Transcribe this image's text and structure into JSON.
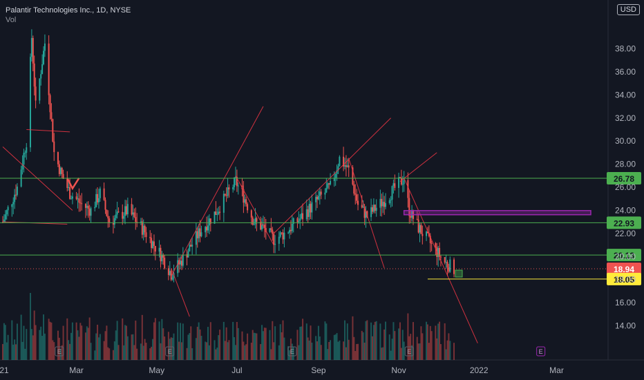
{
  "header": {
    "symbol": "Palantir Technologies Inc., 1D, NYSE",
    "indicator": "Vol"
  },
  "currency_button": "USD",
  "colors": {
    "background": "#131722",
    "up": "#26a69a",
    "down": "#ef5350",
    "green_level": "#4caf50",
    "yellow_level": "#ffeb3b",
    "purple_zone": "#9c27b0",
    "trendline": "#f23645"
  },
  "chart_data": {
    "type": "candlestick",
    "title": "Palantir Technologies Inc., 1D, NYSE",
    "ylim": [
      12.0,
      41.5
    ],
    "x_ticks": [
      "21",
      "Mar",
      "May",
      "Jul",
      "Sep",
      "Nov",
      "2022",
      "Mar"
    ],
    "y_ticks": [
      14.0,
      16.0,
      18.0,
      20.0,
      22.0,
      24.0,
      26.0,
      28.0,
      30.0,
      32.0,
      34.0,
      36.0,
      38.0
    ],
    "price_levels": [
      {
        "value": 26.78,
        "label": "26.78",
        "color": "green"
      },
      {
        "value": 22.93,
        "label": "22.93",
        "color": "green"
      },
      {
        "value": 20.13,
        "label": "20.13",
        "color": "green"
      },
      {
        "value": 18.94,
        "label": "18.94",
        "color": "red",
        "current_price": true
      },
      {
        "value": 18.05,
        "label": "18.05",
        "color": "yellow"
      }
    ],
    "zone": {
      "value": 23.8,
      "color": "purple"
    },
    "earnings_markers": [
      "Feb",
      "May",
      "Aug",
      "Nov",
      "Feb 2022"
    ],
    "earnings_label": "E",
    "price_path": [
      {
        "date": "2021-01-04",
        "close": 23.0
      },
      {
        "date": "2021-01-15",
        "close": 26.0
      },
      {
        "date": "2021-01-22",
        "close": 30.0
      },
      {
        "date": "2021-01-26",
        "close": 39.0
      },
      {
        "date": "2021-01-29",
        "close": 33.0
      },
      {
        "date": "2021-02-05",
        "close": 38.5
      },
      {
        "date": "2021-02-12",
        "close": 29.0
      },
      {
        "date": "2021-02-18",
        "close": 27.0
      },
      {
        "date": "2021-02-24",
        "close": 25.5
      },
      {
        "date": "2021-03-05",
        "close": 24.5
      },
      {
        "date": "2021-03-12",
        "close": 24.0
      },
      {
        "date": "2021-03-19",
        "close": 25.5
      },
      {
        "date": "2021-03-26",
        "close": 23.0
      },
      {
        "date": "2021-04-09",
        "close": 24.0
      },
      {
        "date": "2021-04-23",
        "close": 22.0
      },
      {
        "date": "2021-05-05",
        "close": 20.0
      },
      {
        "date": "2021-05-12",
        "close": 18.5
      },
      {
        "date": "2021-05-19",
        "close": 19.5
      },
      {
        "date": "2021-06-02",
        "close": 22.0
      },
      {
        "date": "2021-06-16",
        "close": 24.0
      },
      {
        "date": "2021-06-30",
        "close": 26.5
      },
      {
        "date": "2021-07-07",
        "close": 25.0
      },
      {
        "date": "2021-07-14",
        "close": 23.0
      },
      {
        "date": "2021-07-21",
        "close": 22.5
      },
      {
        "date": "2021-07-29",
        "close": 21.5
      },
      {
        "date": "2021-08-06",
        "close": 22.0
      },
      {
        "date": "2021-08-20",
        "close": 23.5
      },
      {
        "date": "2021-09-01",
        "close": 25.0
      },
      {
        "date": "2021-09-10",
        "close": 26.0
      },
      {
        "date": "2021-09-17",
        "close": 28.5
      },
      {
        "date": "2021-09-24",
        "close": 27.5
      },
      {
        "date": "2021-10-01",
        "close": 24.5
      },
      {
        "date": "2021-10-08",
        "close": 23.5
      },
      {
        "date": "2021-10-22",
        "close": 25.0
      },
      {
        "date": "2021-11-05",
        "close": 26.8
      },
      {
        "date": "2021-11-09",
        "close": 24.0
      },
      {
        "date": "2021-11-16",
        "close": 22.5
      },
      {
        "date": "2021-11-26",
        "close": 21.0
      },
      {
        "date": "2021-12-06",
        "close": 19.5
      },
      {
        "date": "2021-12-13",
        "close": 18.94
      }
    ],
    "grid": true
  }
}
